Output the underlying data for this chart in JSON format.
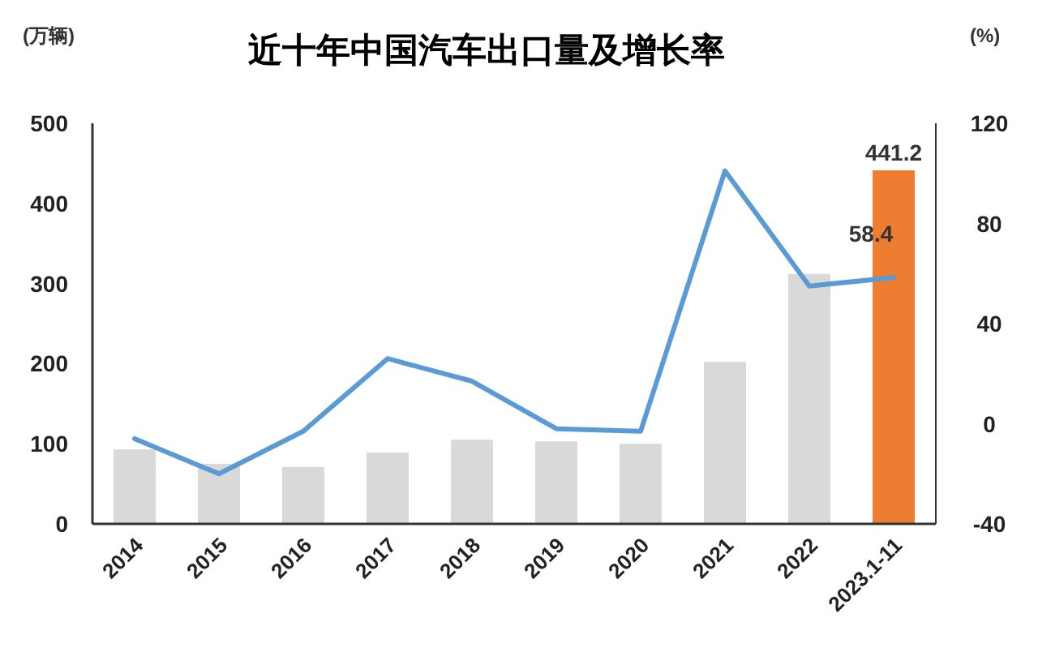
{
  "chart_data": {
    "type": "bar",
    "title": "近十年中国汽车出口量及增长率",
    "ylabel": "(万辆)",
    "y2label": "(%)",
    "categories": [
      "2014",
      "2015",
      "2016",
      "2017",
      "2018",
      "2019",
      "2020",
      "2021",
      "2022",
      "2023.1-11"
    ],
    "series": [
      {
        "colors": [
          "#d9d9d9",
          "#d9d9d9",
          "#d9d9d9",
          "#d9d9d9",
          "#d9d9d9",
          "#d9d9d9",
          "#d9d9d9",
          "#d9d9d9",
          "#d9d9d9",
          "#ed7d31"
        ],
        "values": [
          93,
          75,
          71,
          89,
          105,
          103,
          100,
          202,
          312,
          441.2
        ],
        "value_labels": [
          null,
          null,
          null,
          null,
          null,
          null,
          null,
          null,
          null,
          "441.2"
        ]
      },
      {
        "type": "line",
        "axis": "y2",
        "color": "#5b9bd5",
        "values": [
          -6,
          -20,
          -3,
          26,
          17,
          -2,
          -3,
          101,
          55,
          58.4
        ],
        "value_labels": [
          null,
          null,
          null,
          null,
          null,
          null,
          null,
          null,
          null,
          "58.4"
        ]
      }
    ],
    "ylim": [
      0,
      500
    ],
    "yticks": [
      0,
      100,
      200,
      300,
      400,
      500
    ],
    "y2lim": [
      -40,
      120
    ],
    "y2ticks": [
      -40,
      0,
      40,
      80,
      120
    ],
    "grid": false
  }
}
